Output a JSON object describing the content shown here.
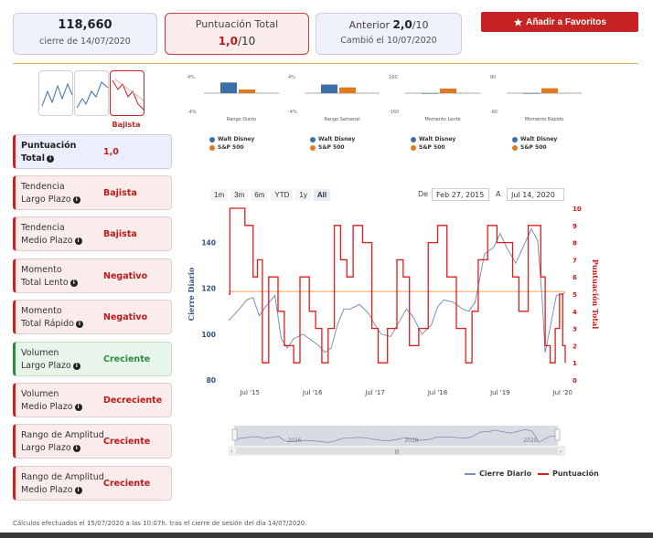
{
  "header": {
    "close_value": "118,660",
    "close_date": "cierre de 14/07/2020",
    "score_label": "Puntuación Total",
    "score_value": "1,0",
    "score_suffix": "/10",
    "prev_label": "Anterior ",
    "prev_value": "2,0",
    "prev_suffix": "/10",
    "prev_changed": "Cambió el 10/07/2020",
    "favorites_label": "Añadir a Favoritos"
  },
  "trend": {
    "active_label": "Bajista"
  },
  "sidebar": {
    "items": [
      {
        "label1": "Puntuación",
        "label2": "Total",
        "value": "1,0",
        "kind": "score"
      },
      {
        "label1": "Tendencia",
        "label2": "Largo Plazo",
        "value": "Bajista",
        "kind": "red"
      },
      {
        "label1": "Tendencia",
        "label2": "Medio Plazo",
        "value": "Bajista",
        "kind": "red"
      },
      {
        "label1": "Momento",
        "label2": "Total Lento",
        "value": "Negativo",
        "kind": "red"
      },
      {
        "label1": "Momento",
        "label2": "Total Rápido",
        "value": "Negativo",
        "kind": "red"
      },
      {
        "label1": "Volumen",
        "label2": "Largo Plazo",
        "value": "Creciente",
        "kind": "green"
      },
      {
        "label1": "Volumen",
        "label2": "Medio Plazo",
        "value": "Decreciente",
        "kind": "red"
      },
      {
        "label1": "Rango de Amplitud",
        "label2": "Largo Plazo",
        "value": "Creciente",
        "kind": "red"
      },
      {
        "label1": "Rango de Amplitud",
        "label2": "Medio Plazo",
        "value": "Creciente",
        "kind": "red"
      }
    ]
  },
  "colors": {
    "disney": "#3c6ea8",
    "sp500": "#e07a1e",
    "score": "#e01b1b",
    "accent": "#c82323"
  },
  "mini_charts": [
    {
      "title": "Rango Diario",
      "ytop": "4%",
      "ybot": "-4%",
      "disney": 2.6,
      "sp": 0.9,
      "ymax": 4
    },
    {
      "title": "Rango Semanal",
      "ytop": "4%",
      "ybot": "-4%",
      "disney": 2.1,
      "sp": 1.4,
      "ymax": 4
    },
    {
      "title": "Momento Lento",
      "ytop": "160",
      "ybot": "-160",
      "disney": -3,
      "sp": 45,
      "ymax": 160
    },
    {
      "title": "Momento Rápido",
      "ytop": "80",
      "ybot": "-80",
      "disney": -2,
      "sp": 24,
      "ymax": 80
    }
  ],
  "legend_labels": {
    "disney": "Walt Disney",
    "sp500": "S&P 500"
  },
  "range": {
    "buttons": [
      "1m",
      "3m",
      "6m",
      "YTD",
      "1y",
      "All"
    ],
    "selected": "All",
    "from_label": "De",
    "from_value": "Feb 27, 2015",
    "to_label": "A",
    "to_value": "Jul 14, 2020"
  },
  "chart_data": {
    "type": "line",
    "ylabel_left": "Cierre Diario",
    "ylabel_right": "Puntuación Total",
    "left_ticks": [
      80,
      100,
      120,
      140
    ],
    "left_range": [
      80,
      155
    ],
    "right_ticks": [
      0,
      1,
      2,
      3,
      4,
      5,
      6,
      7,
      8,
      9,
      10
    ],
    "right_range": [
      0,
      10
    ],
    "x_ticks": [
      "Jul '15",
      "Jul '16",
      "Jul '17",
      "Jul '18",
      "Jul '19",
      "Jul '20"
    ],
    "x_range": [
      2015.16,
      2020.54
    ],
    "x_tick_values": [
      2015.5,
      2016.5,
      2017.5,
      2018.5,
      2019.5,
      2020.5
    ],
    "reference_line": 118.66,
    "series": [
      {
        "name": "Cierre Diario",
        "x": [
          2015.16,
          2015.3,
          2015.45,
          2015.55,
          2015.65,
          2015.75,
          2015.9,
          2016.0,
          2016.1,
          2016.2,
          2016.35,
          2016.5,
          2016.6,
          2016.7,
          2016.8,
          2016.9,
          2017.0,
          2017.1,
          2017.25,
          2017.4,
          2017.5,
          2017.6,
          2017.75,
          2017.9,
          2018.0,
          2018.1,
          2018.25,
          2018.4,
          2018.5,
          2018.6,
          2018.75,
          2018.9,
          2019.0,
          2019.1,
          2019.25,
          2019.4,
          2019.5,
          2019.6,
          2019.75,
          2019.9,
          2020.0,
          2020.1,
          2020.17,
          2020.22,
          2020.3,
          2020.4,
          2020.54
        ],
        "y": [
          106,
          110,
          115,
          116,
          108,
          112,
          117,
          98,
          94,
          98,
          100,
          97,
          95,
          92,
          94,
          104,
          111,
          111,
          113,
          109,
          104,
          100,
          99,
          106,
          111,
          108,
          100,
          104,
          112,
          115,
          114,
          111,
          110,
          114,
          135,
          138,
          144,
          138,
          131,
          140,
          146,
          141,
          116,
          92,
          103,
          117,
          118
        ]
      },
      {
        "name": "Puntuación",
        "x": [
          2015.16,
          2015.18,
          2015.38,
          2015.42,
          2015.55,
          2015.62,
          2015.7,
          2015.8,
          2015.95,
          2016.05,
          2016.2,
          2016.3,
          2016.45,
          2016.55,
          2016.65,
          2016.75,
          2016.85,
          2016.95,
          2017.05,
          2017.15,
          2017.3,
          2017.45,
          2017.55,
          2017.7,
          2017.85,
          2017.95,
          2018.05,
          2018.2,
          2018.35,
          2018.5,
          2018.65,
          2018.8,
          2018.95,
          2019.05,
          2019.15,
          2019.3,
          2019.45,
          2019.6,
          2019.7,
          2019.8,
          2019.95,
          2020.05,
          2020.15,
          2020.22,
          2020.3,
          2020.38,
          2020.45,
          2020.5,
          2020.54
        ],
        "y": [
          5,
          10,
          10,
          9,
          6,
          7,
          1,
          6,
          4,
          2,
          1,
          6,
          4,
          3,
          1,
          3,
          9,
          7,
          6,
          9,
          8,
          3,
          1,
          3,
          7,
          6,
          2,
          3,
          8,
          9,
          6,
          3,
          1,
          4,
          7,
          9,
          8,
          8,
          6,
          4,
          9,
          9,
          6,
          2,
          1,
          3,
          5,
          2,
          1
        ]
      }
    ],
    "navigator_ticks": [
      "2016",
      "2018",
      "2020"
    ],
    "legend": [
      "Cierre Diario",
      "Puntuación"
    ]
  },
  "footnote": "Cálculos efectuados el 15/07/2020 a las 10:07h. tras el cierre de sesión del día 14/07/2020."
}
